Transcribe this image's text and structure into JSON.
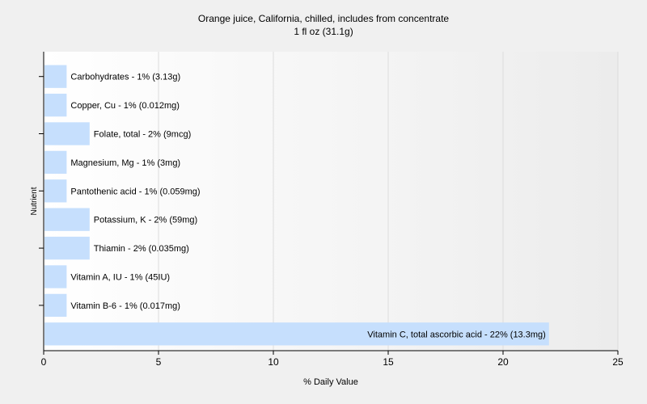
{
  "chart_data": {
    "type": "bar",
    "orientation": "horizontal",
    "title": "Orange juice, California, chilled, includes from concentrate",
    "subtitle": "1 fl oz (31.1g)",
    "xlabel": "% Daily Value",
    "ylabel": "Nutrient",
    "xlim": [
      0,
      25
    ],
    "xticks": [
      0,
      5,
      10,
      15,
      20,
      25
    ],
    "grid": "vertical",
    "legend": "none",
    "bar_color": "#c6dffd",
    "categories": [
      "Carbohydrates",
      "Copper, Cu",
      "Folate, total",
      "Magnesium, Mg",
      "Pantothenic acid",
      "Potassium, K",
      "Thiamin",
      "Vitamin A, IU",
      "Vitamin B-6",
      "Vitamin C, total ascorbic acid"
    ],
    "values": [
      1,
      1,
      2,
      1,
      1,
      2,
      2,
      1,
      1,
      22
    ],
    "labels": [
      "Carbohydrates - 1% (3.13g)",
      "Copper, Cu - 1% (0.012mg)",
      "Folate, total - 2% (9mcg)",
      "Magnesium, Mg - 1% (3mg)",
      "Pantothenic acid - 1% (0.059mg)",
      "Potassium, K - 2% (59mg)",
      "Thiamin - 2% (0.035mg)",
      "Vitamin A, IU - 1% (45IU)",
      "Vitamin B-6 - 1% (0.017mg)",
      "Vitamin C, total ascorbic acid - 22% (13.3mg)"
    ]
  }
}
